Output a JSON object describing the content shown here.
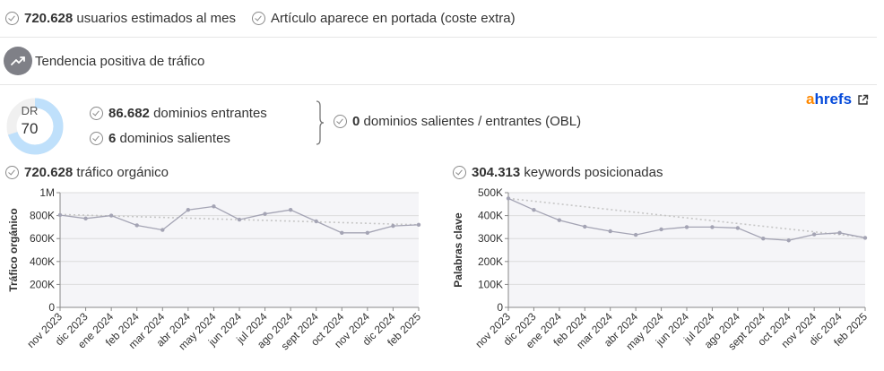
{
  "features": {
    "users_value": "720.628",
    "users_label": "usuarios estimados al mes",
    "homepage_label": "Artículo aparece en portada (coste extra)",
    "trend_label": "Tendencia positiva de tráfico"
  },
  "metrics": {
    "dr_label": "DR",
    "dr_value": "70",
    "dr_percent": 70,
    "referring_value": "86.682",
    "referring_label": "dominios entrantes",
    "outgoing_value": "6",
    "outgoing_label": "dominios salientes",
    "obl_value": "0",
    "obl_label": "dominios salientes / entrantes (OBL)",
    "ahrefs_a": "a",
    "ahrefs_rest": "hrefs"
  },
  "colors": {
    "dr_ring": "#bfe0fb",
    "dr_ring_bg": "#f0f0f0",
    "series_line": "#a4a4b4",
    "trend_line": "#c6c6c6",
    "plot_fill": "#f5f5f8",
    "ahrefs_orange": "#ff8800",
    "ahrefs_blue": "#054ada"
  },
  "traffic": {
    "value": "720.628",
    "label": "tráfico orgánico"
  },
  "keywords": {
    "value": "304.313",
    "label": "keywords posicionadas"
  },
  "chart_data": [
    {
      "type": "line",
      "ylabel": "Tráfico orgánico",
      "ylim": [
        0,
        1000000
      ],
      "yticks": [
        "0",
        "200K",
        "400K",
        "600K",
        "800K",
        "1M"
      ],
      "categories": [
        "nov 2023",
        "dic 2023",
        "ene 2024",
        "feb 2024",
        "mar 2024",
        "abr 2024",
        "may 2024",
        "jun 2024",
        "jul 2024",
        "ago 2024",
        "sept 2024",
        "oct 2024",
        "nov 2024",
        "dic 2024",
        "feb 2025"
      ],
      "series": [
        {
          "values": [
            805000,
            775000,
            800000,
            715000,
            675000,
            850000,
            880000,
            765000,
            815000,
            850000,
            750000,
            650000,
            650000,
            710000,
            720000
          ]
        }
      ],
      "trendline": [
        810000,
        720000
      ],
      "grid": "horizontal"
    },
    {
      "type": "line",
      "ylabel": "Palabras clave",
      "ylim": [
        0,
        500000
      ],
      "yticks": [
        "0",
        "100K",
        "200K",
        "300K",
        "400K",
        "500K"
      ],
      "categories": [
        "nov 2023",
        "dic 2023",
        "ene 2024",
        "feb 2024",
        "mar 2024",
        "abr 2024",
        "may 2024",
        "jun 2024",
        "jul 2024",
        "ago 2024",
        "sept 2024",
        "oct 2024",
        "nov 2024",
        "dic 2024",
        "feb 2025"
      ],
      "series": [
        {
          "values": [
            475000,
            425000,
            380000,
            352000,
            332000,
            316000,
            340000,
            350000,
            350000,
            346000,
            300000,
            292000,
            318000,
            325000,
            303000
          ]
        }
      ],
      "trendline": [
        475000,
        305000
      ],
      "grid": "horizontal"
    }
  ]
}
